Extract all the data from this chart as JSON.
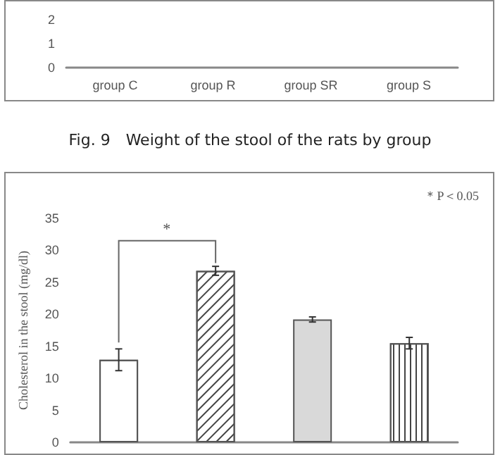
{
  "chart_data": [
    {
      "type": "bar",
      "title": "Fig. 9　Weight of the stool of the rats by group",
      "categories": [
        "group C",
        "group R",
        "group SR",
        "group S"
      ],
      "values": [
        null,
        null,
        null,
        null
      ],
      "ylim": [
        0,
        2.6
      ],
      "yticks": [
        0,
        1,
        2
      ],
      "grid": false
    },
    {
      "type": "bar",
      "ylabel": "Cholesterol in the stool (mg/dl)",
      "categories": [
        null,
        null,
        null,
        null
      ],
      "values": [
        12.9,
        26.8,
        19.2,
        15.5
      ],
      "errors": [
        1.7,
        0.7,
        0.4,
        0.9
      ],
      "colors": [
        "#ffffff",
        "#ffffff",
        "#d9d9d9",
        "#ffffff"
      ],
      "ylim": [
        0,
        35
      ],
      "yticks": [
        0,
        5,
        10,
        15,
        20,
        25,
        30,
        35
      ],
      "grid": false,
      "annotations": [
        "＊P＜0.05",
        "*"
      ]
    }
  ]
}
